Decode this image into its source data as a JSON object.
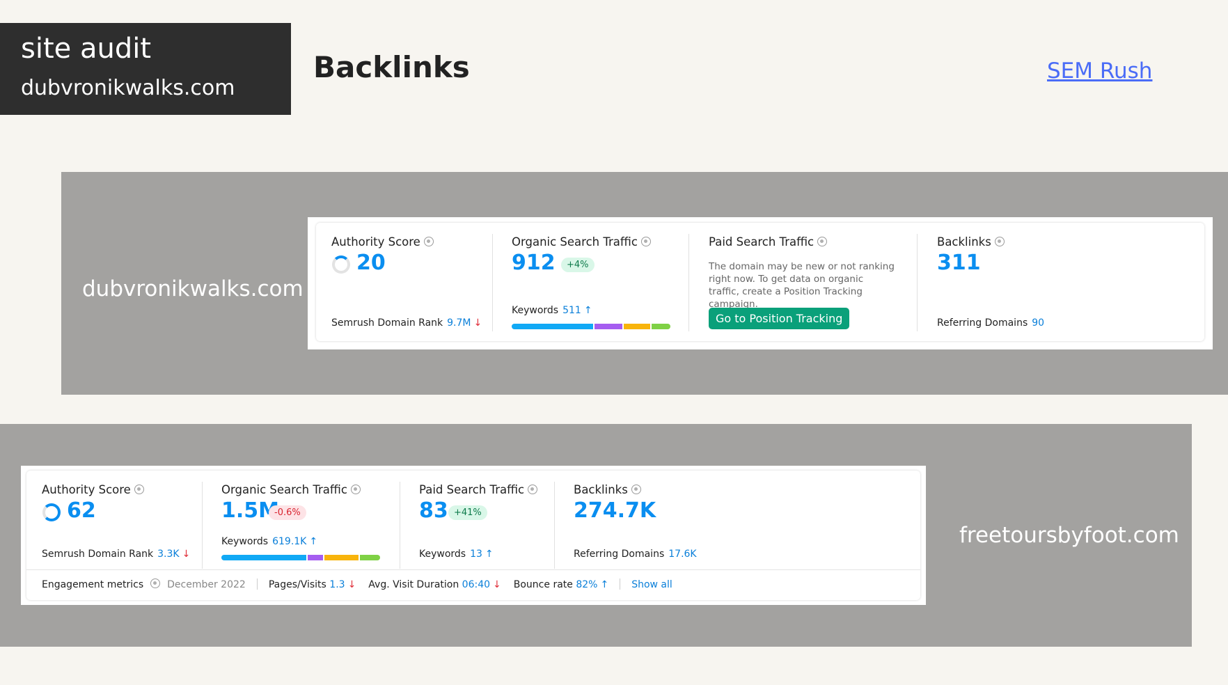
{
  "header": {
    "box_line1": "site audit",
    "box_line2": "dubvronikwalks.com",
    "page_title": "Backlinks",
    "link": "SEM Rush"
  },
  "site1": {
    "domain": "dubvronikwalks.com",
    "authority": {
      "title": "Authority Score",
      "value": "20",
      "rank_label": "Semrush Domain Rank",
      "rank_value": "9.7M",
      "rank_trend": "down"
    },
    "organic": {
      "title": "Organic Search Traffic",
      "value": "912",
      "change": "+4%",
      "keywords_label": "Keywords",
      "keywords_value": "511",
      "keywords_trend": "up"
    },
    "paid": {
      "title": "Paid Search Traffic",
      "description": "The domain may be new or not ranking right now. To get data on organic traffic, create a Position Tracking campaign.",
      "button": "Go to Position Tracking"
    },
    "backlinks": {
      "title": "Backlinks",
      "value": "311",
      "ref_label": "Referring Domains",
      "ref_value": "90"
    }
  },
  "site2": {
    "domain": "freetoursbyfoot.com",
    "authority": {
      "title": "Authority Score",
      "value": "62",
      "rank_label": "Semrush Domain Rank",
      "rank_value": "3.3K",
      "rank_trend": "down"
    },
    "organic": {
      "title": "Organic Search Traffic",
      "value": "1.5M",
      "change": "-0.6%",
      "keywords_label": "Keywords",
      "keywords_value": "619.1K",
      "keywords_trend": "up"
    },
    "paid": {
      "title": "Paid Search Traffic",
      "value": "83",
      "change": "+41%",
      "keywords_label": "Keywords",
      "keywords_value": "13",
      "keywords_trend": "up"
    },
    "backlinks": {
      "title": "Backlinks",
      "value": "274.7K",
      "ref_label": "Referring Domains",
      "ref_value": "17.6K"
    },
    "engagement": {
      "label": "Engagement metrics",
      "period": "December 2022",
      "pages_label": "Pages/Visits",
      "pages_value": "1.3",
      "duration_label": "Avg. Visit Duration",
      "duration_value": "06:40",
      "bounce_label": "Bounce rate",
      "bounce_value": "82%",
      "show_all": "Show all"
    }
  },
  "arrows": {
    "up": "↑",
    "down": "↓"
  },
  "colors": {
    "keyword_bar": [
      "#11a9f5",
      "#a55df0",
      "#f8b40c",
      "#7fd145"
    ],
    "accent": "#0a8ef0",
    "cta": "#0aa07a"
  }
}
